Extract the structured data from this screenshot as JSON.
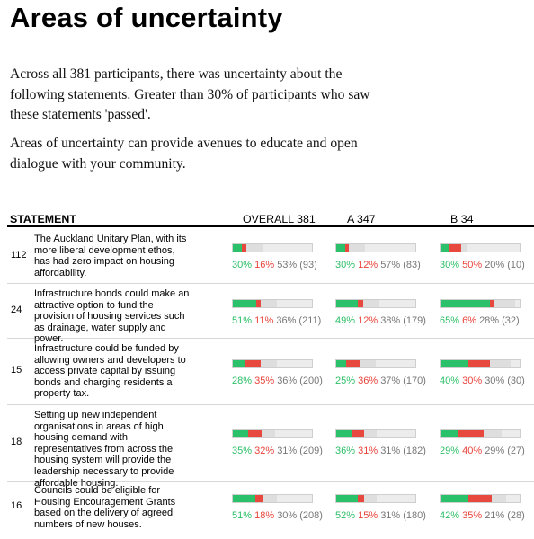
{
  "title": "Areas of uncertainty",
  "intro": [
    "Across all 381 participants, there was uncertainty about the following statements. Greater than 30% of participants who saw these statements 'passed'.",
    "Areas of uncertainty can provide avenues to educate and open dialogue with your community."
  ],
  "table": {
    "headers": {
      "statement": "STATEMENT",
      "overall": "OVERALL 381",
      "a": "A 347",
      "b": "B 34"
    },
    "colors": {
      "agree": "#2bc16b",
      "disagree": "#e8493f",
      "pass": "#dedede"
    },
    "rows": [
      {
        "id": "112",
        "text": "The Auckland Unitary Plan, with its more liberal development ethos, has had zero impact on housing affordability.",
        "overall": {
          "agree": "30%",
          "disagree": "16%",
          "pass": "53% (93)",
          "agree_v": 0.11,
          "disagree_v": 0.06,
          "pass_v": 0.2
        },
        "a": {
          "agree": "30%",
          "disagree": "12%",
          "pass": "57% (83)",
          "agree_v": 0.11,
          "disagree_v": 0.04,
          "pass_v": 0.2
        },
        "b": {
          "agree": "30%",
          "disagree": "50%",
          "pass": "20% (10)",
          "agree_v": 0.1,
          "disagree_v": 0.16,
          "pass_v": 0.07
        }
      },
      {
        "id": "24",
        "text": "Infrastructure bonds could make an attractive option to fund the provision of housing services such as drainage, water supply and power.",
        "overall": {
          "agree": "51%",
          "disagree": "11%",
          "pass": "36% (211)",
          "agree_v": 0.3,
          "disagree_v": 0.06,
          "pass_v": 0.21
        },
        "a": {
          "agree": "49%",
          "disagree": "12%",
          "pass": "38% (179)",
          "agree_v": 0.27,
          "disagree_v": 0.07,
          "pass_v": 0.21
        },
        "b": {
          "agree": "65%",
          "disagree": "6%",
          "pass": "28% (32)",
          "agree_v": 0.62,
          "disagree_v": 0.06,
          "pass_v": 0.26
        }
      },
      {
        "id": "15",
        "text": "Infrastructure could be funded by allowing owners and developers to access private capital by issuing bonds and charging residents a property tax.",
        "overall": {
          "agree": "28%",
          "disagree": "35%",
          "pass": "36% (200)",
          "agree_v": 0.16,
          "disagree_v": 0.19,
          "pass_v": 0.2
        },
        "a": {
          "agree": "25%",
          "disagree": "36%",
          "pass": "37% (170)",
          "agree_v": 0.13,
          "disagree_v": 0.18,
          "pass_v": 0.19
        },
        "b": {
          "agree": "40%",
          "disagree": "30%",
          "pass": "30% (30)",
          "agree_v": 0.35,
          "disagree_v": 0.27,
          "pass_v": 0.26
        }
      },
      {
        "id": "18",
        "text": "Setting up new independent organisations in areas of high housing demand with representatives from across the housing system will provide the leadership necessary to provide affordable housing.",
        "overall": {
          "agree": "35%",
          "disagree": "32%",
          "pass": "31% (209)",
          "agree_v": 0.19,
          "disagree_v": 0.17,
          "pass_v": 0.17
        },
        "a": {
          "agree": "36%",
          "disagree": "31%",
          "pass": "31% (182)",
          "agree_v": 0.19,
          "disagree_v": 0.16,
          "pass_v": 0.16
        },
        "b": {
          "agree": "29%",
          "disagree": "40%",
          "pass": "29% (27)",
          "agree_v": 0.23,
          "disagree_v": 0.32,
          "pass_v": 0.23
        }
      },
      {
        "id": "16",
        "text": "Councils could be eligible for Housing Encouragement Grants based on the delivery of agreed numbers of new houses.",
        "overall": {
          "agree": "51%",
          "disagree": "18%",
          "pass": "30% (208)",
          "agree_v": 0.28,
          "disagree_v": 0.1,
          "pass_v": 0.17
        },
        "a": {
          "agree": "52%",
          "disagree": "15%",
          "pass": "31% (180)",
          "agree_v": 0.27,
          "disagree_v": 0.08,
          "pass_v": 0.16
        },
        "b": {
          "agree": "42%",
          "disagree": "35%",
          "pass": "21% (28)",
          "agree_v": 0.35,
          "disagree_v": 0.29,
          "pass_v": 0.18
        }
      }
    ]
  }
}
